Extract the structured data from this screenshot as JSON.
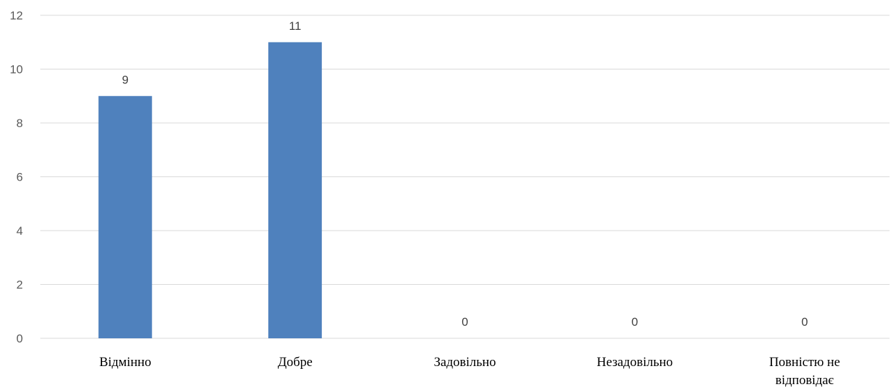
{
  "chart_data": {
    "type": "bar",
    "categories": [
      [
        "Відмінно"
      ],
      [
        "Добре"
      ],
      [
        "Задовільно"
      ],
      [
        "Незадовільно"
      ],
      [
        "Повністю не",
        "відповідає"
      ]
    ],
    "values": [
      9,
      11,
      0,
      0,
      0
    ],
    "data_labels": [
      "9",
      "11",
      "0",
      "0",
      "0"
    ],
    "ylim": [
      0,
      12
    ],
    "y_ticks": [
      0,
      2,
      4,
      6,
      8,
      10,
      12
    ],
    "grid": true,
    "legend": "none",
    "colors": {
      "bar": "#4f81bd",
      "grid": "#d9d9d9"
    }
  }
}
